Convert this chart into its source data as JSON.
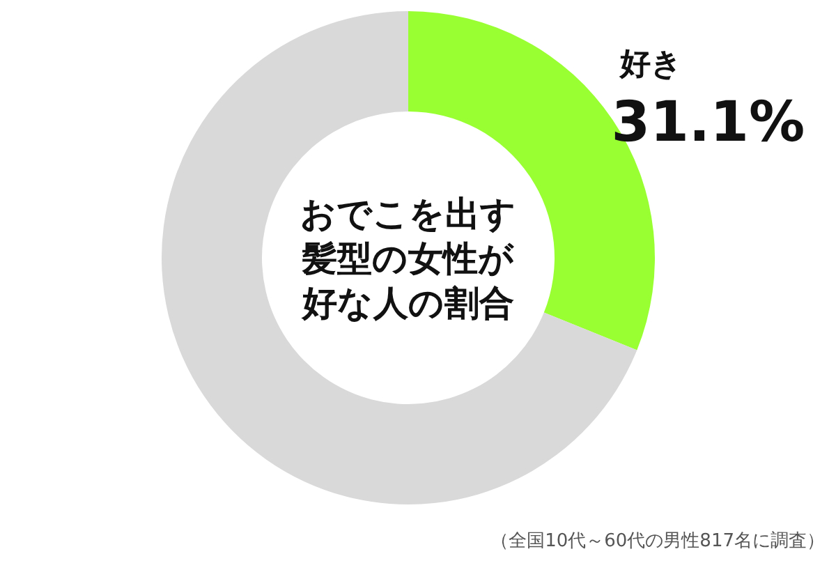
{
  "chart_data": {
    "type": "donut",
    "title": "おでこを出す髪型の女性が好な人の割合",
    "categories": [
      "好き",
      null
    ],
    "values": [
      31.1,
      68.9
    ],
    "colors": [
      "#99ff33",
      "#d9d9d9"
    ],
    "value_labels": [
      "31.1%",
      null
    ],
    "annotations": [
      "（全国10代～60代の男性817名に調査）"
    ]
  }
}
